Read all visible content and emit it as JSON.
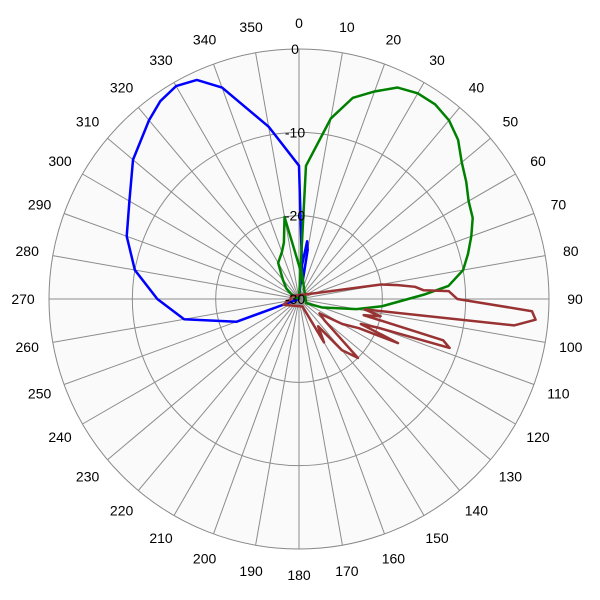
{
  "chart_data": {
    "type": "polar",
    "title": "",
    "angle_labels": [
      "0",
      "10",
      "20",
      "30",
      "40",
      "50",
      "60",
      "70",
      "80",
      "90",
      "100",
      "110",
      "120",
      "130",
      "140",
      "150",
      "160",
      "170",
      "180",
      "190",
      "200",
      "210",
      "220",
      "230",
      "240",
      "250",
      "260",
      "270",
      "280",
      "290",
      "300",
      "310",
      "320",
      "330",
      "340",
      "350"
    ],
    "radial_axis": {
      "min": -30,
      "max": 0,
      "tick_labels": [
        "0",
        "-10",
        "-20",
        "-30"
      ]
    },
    "grid": true,
    "series": [
      {
        "color": "#0000ff",
        "points": [
          [
            0,
            -14
          ],
          [
            350,
            -9
          ],
          [
            340,
            -3
          ],
          [
            335,
            -1
          ],
          [
            330,
            -0.5
          ],
          [
            325,
            -1
          ],
          [
            320,
            -2
          ],
          [
            310,
            -4
          ],
          [
            300,
            -6.5
          ],
          [
            290,
            -8
          ],
          [
            280,
            -10
          ],
          [
            270,
            -13
          ],
          [
            260,
            -16
          ],
          [
            250,
            -22
          ],
          [
            240,
            -30
          ],
          [
            0,
            -30
          ],
          [
            5,
            -26
          ],
          [
            8,
            -23
          ],
          [
            10,
            -24
          ],
          [
            12,
            -28
          ]
        ]
      },
      {
        "color": "#008000",
        "points": [
          [
            350,
            -20
          ],
          [
            345,
            -23
          ],
          [
            340,
            -24
          ],
          [
            330,
            -25
          ],
          [
            320,
            -27
          ],
          [
            310,
            -28
          ],
          [
            300,
            -29
          ],
          [
            0,
            -30
          ],
          [
            3,
            -14
          ],
          [
            10,
            -8
          ],
          [
            15,
            -5
          ],
          [
            20,
            -3.5
          ],
          [
            25,
            -2
          ],
          [
            30,
            -1.5
          ],
          [
            35,
            -1.5
          ],
          [
            40,
            -2
          ],
          [
            45,
            -3
          ],
          [
            50,
            -4.5
          ],
          [
            55,
            -5.5
          ],
          [
            60,
            -6.5
          ],
          [
            65,
            -7
          ],
          [
            70,
            -8
          ],
          [
            75,
            -9
          ],
          [
            80,
            -10
          ],
          [
            85,
            -12
          ],
          [
            88,
            -15
          ],
          [
            95,
            -20
          ],
          [
            100,
            -23
          ],
          [
            110,
            -27
          ],
          [
            120,
            -29
          ],
          [
            3,
            -26
          ],
          [
            6,
            -27
          ]
        ]
      },
      {
        "color": "#993333",
        "points": [
          [
            70,
            -28
          ],
          [
            80,
            -20
          ],
          [
            82,
            -18
          ],
          [
            84,
            -16
          ],
          [
            86,
            -15
          ],
          [
            87,
            -12
          ],
          [
            90,
            -11
          ],
          [
            93,
            -2
          ],
          [
            95,
            -1.5
          ],
          [
            97,
            -4
          ],
          [
            99,
            -22
          ],
          [
            102,
            -20
          ],
          [
            104,
            -22
          ],
          [
            106,
            -12
          ],
          [
            108,
            -11
          ],
          [
            110,
            -20
          ],
          [
            112,
            -22
          ],
          [
            114,
            -17
          ],
          [
            116,
            -22
          ],
          [
            120,
            -24
          ],
          [
            125,
            -27
          ],
          [
            130,
            -26
          ],
          [
            135,
            -20
          ],
          [
            140,
            -22
          ],
          [
            145,
            -26
          ],
          [
            150,
            -24
          ],
          [
            155,
            -29
          ],
          [
            250,
            -28
          ],
          [
            270,
            -29
          ],
          [
            290,
            -29
          ]
        ]
      }
    ]
  }
}
